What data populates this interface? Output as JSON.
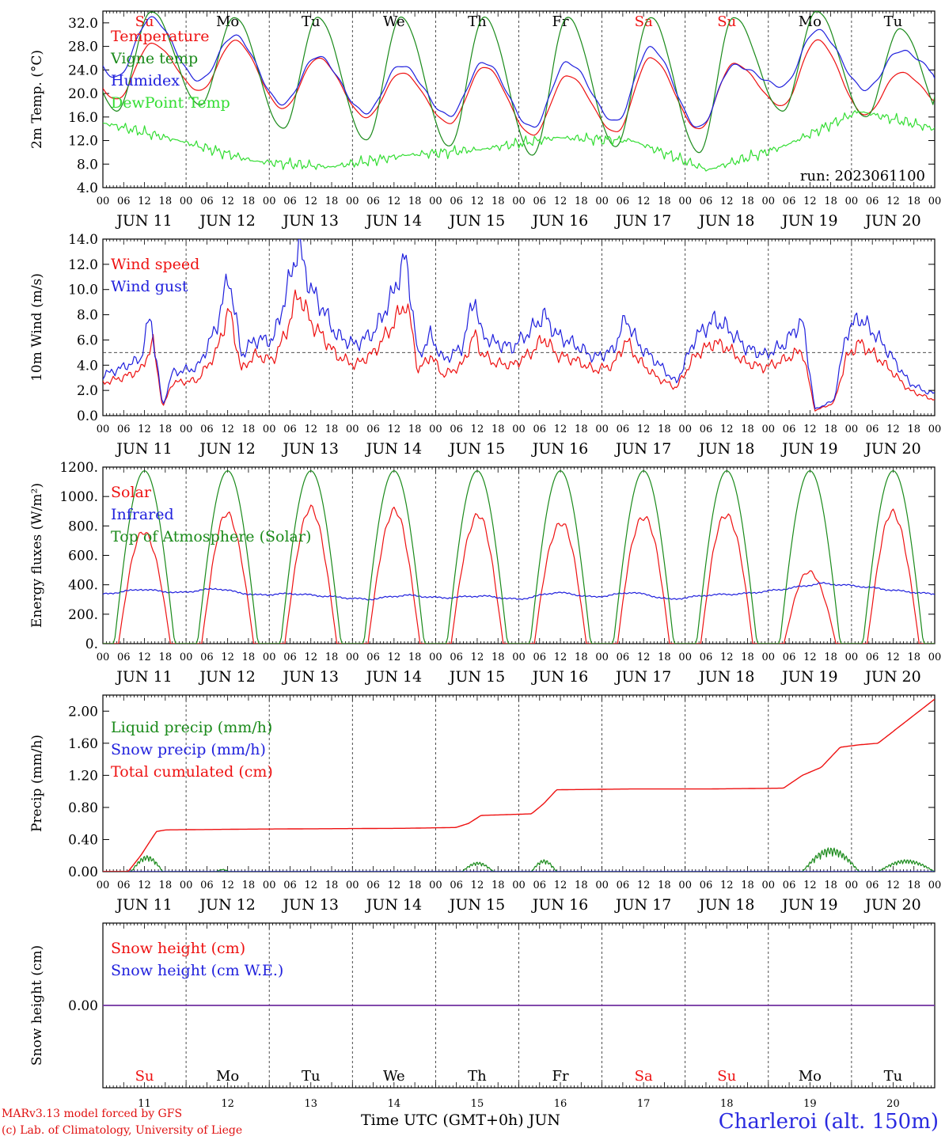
{
  "colors": {
    "red": "#ee1111",
    "green": "#1a8a1a",
    "lightgreen": "#33dd33",
    "blue": "#2020dd",
    "purple": "#7030a0"
  },
  "x_axis": {
    "hour_labels": [
      "00",
      "06",
      "12",
      "18"
    ],
    "final_hour": "00",
    "day_labels": [
      "JUN 11",
      "JUN 12",
      "JUN 13",
      "JUN 14",
      "JUN 15",
      "JUN 16",
      "JUN 17",
      "JUN 18",
      "JUN 19",
      "JUN 20"
    ],
    "weekdays": [
      "Su",
      "Mo",
      "Tu",
      "We",
      "Th",
      "Fr",
      "Sa",
      "Su",
      "Mo",
      "Tu"
    ],
    "weekday_colors": [
      "red",
      "black",
      "black",
      "black",
      "black",
      "black",
      "red",
      "red",
      "black",
      "black"
    ],
    "day_numbers": [
      "11",
      "12",
      "13",
      "14",
      "15",
      "16",
      "17",
      "18",
      "19",
      "20"
    ],
    "bottom_label": "Time UTC (GMT+0h)",
    "bottom_month": "JUN"
  },
  "chart_data": [
    {
      "type": "line",
      "ylabel": "2m Temp. (°C)",
      "ylim": [
        4,
        34
      ],
      "yticks": [
        "4.0",
        "8.0",
        "12.0",
        "16.0",
        "20.0",
        "24.0",
        "28.0",
        "32.0"
      ],
      "annotation": "run: 2023061100",
      "series": [
        {
          "name": "Temperature",
          "color": "red",
          "min_max": [
            [
              19,
              28.5
            ],
            [
              20.5,
              29
            ],
            [
              17.5,
              26
            ],
            [
              16,
              23.5
            ],
            [
              15,
              24.5
            ],
            [
              13,
              23
            ],
            [
              13.5,
              26
            ],
            [
              14,
              25
            ],
            [
              18,
              29
            ],
            [
              16.5,
              23.5
            ]
          ],
          "end": 17.5
        },
        {
          "name": "Vigne temp",
          "color": "green",
          "min_max": [
            [
              17,
              34
            ],
            [
              18,
              33
            ],
            [
              14,
              33
            ],
            [
              12,
              33
            ],
            [
              11,
              33
            ],
            [
              9.5,
              33
            ],
            [
              11,
              33
            ],
            [
              10,
              33
            ],
            [
              17,
              34
            ],
            [
              16,
              31
            ]
          ],
          "end": 14
        },
        {
          "name": "Humidex",
          "color": "blue",
          "min_max": [
            [
              22.5,
              33
            ],
            [
              22,
              30
            ],
            [
              18,
              26.5
            ],
            [
              16.5,
              25
            ],
            [
              16,
              25.5
            ],
            [
              14,
              25.5
            ],
            [
              15,
              28
            ],
            [
              14,
              25
            ],
            [
              21,
              31
            ],
            [
              20.5,
              27.5
            ]
          ],
          "end": 22
        },
        {
          "name": "DewPoint Temp",
          "color": "lightgreen",
          "daily": [
            15,
            12,
            8.5,
            7.5,
            9.5,
            10.5,
            12.5,
            12,
            7,
            11,
            17,
            14
          ],
          "end": 14
        }
      ]
    },
    {
      "type": "line",
      "ylabel": "10m Wind (m/s)",
      "ylim": [
        0,
        14
      ],
      "yticks": [
        "0.0",
        "2.0",
        "4.0",
        "6.0",
        "8.0",
        "10.0",
        "12.0",
        "14.0"
      ],
      "reference_line": 5,
      "series": [
        {
          "name": "Wind speed",
          "color": "red",
          "points": [
            [
              0,
              2.6
            ],
            [
              6,
              3.0
            ],
            [
              12,
              3.6
            ],
            [
              16,
              5.8
            ],
            [
              19,
              0.6
            ],
            [
              22,
              2.6
            ],
            [
              30,
              2.8
            ],
            [
              36,
              5.0
            ],
            [
              40,
              8.5
            ],
            [
              44,
              3.6
            ],
            [
              48,
              4.8
            ],
            [
              54,
              4.4
            ],
            [
              58,
              6.5
            ],
            [
              62,
              9.8
            ],
            [
              66,
              7.4
            ],
            [
              70,
              6.2
            ],
            [
              74,
              4.8
            ],
            [
              80,
              4.0
            ],
            [
              86,
              5.0
            ],
            [
              92,
              7.2
            ],
            [
              96,
              9.0
            ],
            [
              98,
              7.0
            ],
            [
              100,
              3.5
            ],
            [
              104,
              4.8
            ],
            [
              108,
              3.2
            ],
            [
              114,
              4.0
            ],
            [
              118,
              6.5
            ],
            [
              120,
              5.0
            ],
            [
              124,
              4.2
            ],
            [
              130,
              4.0
            ],
            [
              136,
              5.0
            ],
            [
              140,
              6.2
            ],
            [
              144,
              4.8
            ],
            [
              150,
              4.4
            ],
            [
              156,
              3.6
            ],
            [
              162,
              4.0
            ],
            [
              166,
              6.0
            ],
            [
              170,
              4.4
            ],
            [
              176,
              3.0
            ],
            [
              182,
              2.2
            ],
            [
              188,
              4.8
            ],
            [
              194,
              5.8
            ],
            [
              198,
              5.4
            ],
            [
              204,
              4.2
            ],
            [
              210,
              3.8
            ],
            [
              216,
              4.4
            ],
            [
              222,
              5.2
            ],
            [
              226,
              0.4
            ],
            [
              232,
              1.0
            ],
            [
              236,
              4.6
            ],
            [
              240,
              5.8
            ],
            [
              246,
              4.6
            ],
            [
              250,
              3.6
            ],
            [
              256,
              2.0
            ],
            [
              262,
              1.4
            ],
            [
              264,
              1.3
            ]
          ]
        },
        {
          "name": "Wind gust",
          "color": "blue",
          "points": [
            [
              0,
              3.2
            ],
            [
              6,
              3.8
            ],
            [
              12,
              4.5
            ],
            [
              15,
              8.0
            ],
            [
              19,
              0.7
            ],
            [
              22,
              3.4
            ],
            [
              30,
              3.8
            ],
            [
              36,
              7.0
            ],
            [
              40,
              11.2
            ],
            [
              44,
              4.8
            ],
            [
              48,
              6.0
            ],
            [
              54,
              6.0
            ],
            [
              58,
              9.5
            ],
            [
              62,
              13.5
            ],
            [
              66,
              10.0
            ],
            [
              70,
              8.4
            ],
            [
              74,
              6.4
            ],
            [
              80,
              5.6
            ],
            [
              86,
              6.6
            ],
            [
              92,
              9.6
            ],
            [
              96,
              12.6
            ],
            [
              98,
              9.0
            ],
            [
              100,
              4.6
            ],
            [
              104,
              6.4
            ],
            [
              108,
              4.4
            ],
            [
              114,
              5.4
            ],
            [
              118,
              9.6
            ],
            [
              120,
              6.5
            ],
            [
              124,
              5.8
            ],
            [
              130,
              5.4
            ],
            [
              136,
              6.8
            ],
            [
              140,
              8.0
            ],
            [
              144,
              6.4
            ],
            [
              150,
              5.6
            ],
            [
              156,
              4.6
            ],
            [
              162,
              5.2
            ],
            [
              166,
              7.8
            ],
            [
              170,
              5.6
            ],
            [
              176,
              4.2
            ],
            [
              182,
              2.6
            ],
            [
              188,
              6.2
            ],
            [
              194,
              7.6
            ],
            [
              198,
              7.0
            ],
            [
              204,
              5.4
            ],
            [
              210,
              4.8
            ],
            [
              216,
              5.6
            ],
            [
              222,
              7.6
            ],
            [
              226,
              0.5
            ],
            [
              232,
              1.2
            ],
            [
              236,
              6.6
            ],
            [
              240,
              7.8
            ],
            [
              246,
              6.2
            ],
            [
              250,
              4.8
            ],
            [
              256,
              2.6
            ],
            [
              262,
              1.8
            ],
            [
              264,
              1.8
            ]
          ]
        }
      ]
    },
    {
      "type": "line",
      "ylabel": "Energy fluxes (W/m²)",
      "ylim": [
        0,
        1200
      ],
      "yticks": [
        "0.",
        "200.",
        "400.",
        "600.",
        "800.",
        "1000.",
        "1200."
      ],
      "series": [
        {
          "name": "Solar",
          "color": "red",
          "daily_peak": [
            760,
            870,
            900,
            890,
            870,
            830,
            880,
            890,
            490,
            880
          ]
        },
        {
          "name": "Infrared",
          "color": "blue",
          "points": [
            [
              0,
              335
            ],
            [
              12,
              370
            ],
            [
              24,
              345
            ],
            [
              36,
              375
            ],
            [
              48,
              330
            ],
            [
              60,
              340
            ],
            [
              72,
              320
            ],
            [
              84,
              300
            ],
            [
              96,
              330
            ],
            [
              108,
              310
            ],
            [
              120,
              325
            ],
            [
              132,
              300
            ],
            [
              144,
              350
            ],
            [
              156,
              315
            ],
            [
              168,
              350
            ],
            [
              180,
              300
            ],
            [
              192,
              330
            ],
            [
              204,
              340
            ],
            [
              216,
              370
            ],
            [
              228,
              410
            ],
            [
              240,
              390
            ],
            [
              252,
              360
            ],
            [
              264,
              335
            ]
          ]
        },
        {
          "name": "Top of Atmosphere (Solar)",
          "color": "green",
          "daily_peak": [
            1175,
            1175,
            1175,
            1175,
            1175,
            1175,
            1175,
            1175,
            1175,
            1175
          ]
        }
      ]
    },
    {
      "type": "line",
      "ylabel": "Precip (mm/h)",
      "ylim": [
        0,
        2.2
      ],
      "yticks": [
        "0.00",
        "0.40",
        "0.80",
        "1.20",
        "1.60",
        "2.00"
      ],
      "series": [
        {
          "name": "Liquid precip (mm/h)",
          "color": "green",
          "bursts": [
            [
              9,
              19,
              0.2
            ],
            [
              36,
              40,
              0.03
            ],
            [
              114,
              124,
              0.12
            ],
            [
              136,
              144,
              0.15
            ],
            [
              222,
              240,
              0.3
            ],
            [
              246,
              264,
              0.15
            ]
          ]
        },
        {
          "name": "Snow precip (mm/h)",
          "color": "blue",
          "constant": 0
        },
        {
          "name": "Total cumulated (cm)",
          "color": "red",
          "points": [
            [
              0,
              0
            ],
            [
              8,
              0
            ],
            [
              12,
              0.2
            ],
            [
              17,
              0.5
            ],
            [
              20,
              0.52
            ],
            [
              48,
              0.53
            ],
            [
              96,
              0.54
            ],
            [
              112,
              0.55
            ],
            [
              116,
              0.6
            ],
            [
              120,
              0.7
            ],
            [
              136,
              0.72
            ],
            [
              140,
              0.85
            ],
            [
              144,
              1.02
            ],
            [
              168,
              1.03
            ],
            [
              192,
              1.03
            ],
            [
              216,
              1.04
            ],
            [
              222,
              1.2
            ],
            [
              228,
              1.3
            ],
            [
              234,
              1.55
            ],
            [
              240,
              1.58
            ],
            [
              246,
              1.6
            ],
            [
              264,
              2.15
            ]
          ]
        }
      ]
    },
    {
      "type": "line",
      "ylabel": "Snow height (cm)",
      "ylim": [
        -1,
        1
      ],
      "yticks": [
        "0.00"
      ],
      "series": [
        {
          "name": "Snow height (cm)",
          "color": "red",
          "constant": 0
        },
        {
          "name": "Snow height (cm W.E.)",
          "color": "blue",
          "constant": 0
        }
      ]
    }
  ],
  "footer": {
    "credit_line1": "MARv3.13 model forced by GFS",
    "credit_line2": "(c) Lab. of Climatology, University of Liege",
    "location": "Charleroi (alt. 150m)"
  }
}
